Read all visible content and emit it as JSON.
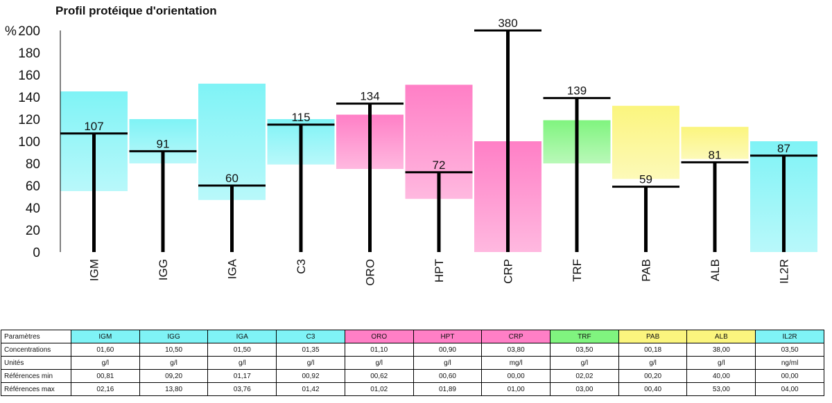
{
  "chart_data": {
    "type": "bar",
    "title": "Profil protéique d'orientation",
    "ylabel": "%",
    "ylim": [
      0,
      200
    ],
    "yticks": [
      0,
      20,
      40,
      60,
      80,
      100,
      120,
      140,
      160,
      180,
      200
    ],
    "grid": false,
    "categories": [
      "IGM",
      "IGG",
      "IGA",
      "C3",
      "ORO",
      "HPT",
      "CRP",
      "TRF",
      "PAB",
      "ALB",
      "IL2R"
    ],
    "values": [
      107,
      91,
      60,
      115,
      134,
      72,
      380,
      139,
      59,
      81,
      87
    ],
    "value_labels": [
      "107",
      "91",
      "60",
      "115",
      "134",
      "72",
      "380",
      "139",
      "59",
      "81",
      "87"
    ],
    "reference_ranges": [
      [
        55,
        145
      ],
      [
        80,
        120
      ],
      [
        47,
        152
      ],
      [
        79,
        120
      ],
      [
        75,
        124
      ],
      [
        48,
        151
      ],
      [
        0,
        100
      ],
      [
        80,
        119
      ],
      [
        66,
        132
      ],
      [
        84,
        113
      ],
      [
        0,
        100
      ]
    ],
    "value_clip_max": 200,
    "band_colors": [
      "cyan",
      "cyan",
      "cyan",
      "cyan",
      "pink",
      "pink",
      "pink",
      "green",
      "yellow",
      "yellow",
      "cyan"
    ],
    "colors": {
      "cyan": "#7ff3f6",
      "pink": "#ff7fc6",
      "green": "#80f47f",
      "yellow": "#fbf57e"
    }
  },
  "table": {
    "rows": [
      {
        "label": "Paramètres",
        "cells": [
          "IGM",
          "IGG",
          "IGA",
          "C3",
          "ORO",
          "HPT",
          "CRP",
          "TRF",
          "PAB",
          "ALB",
          "IL2R"
        ]
      },
      {
        "label": "Concentrations",
        "cells": [
          "01,60",
          "10,50",
          "01,50",
          "01,35",
          "01,10",
          "00,90",
          "03,80",
          "03,50",
          "00,18",
          "38,00",
          "03,50"
        ]
      },
      {
        "label": "Unités",
        "cells": [
          "g/l",
          "g/l",
          "g/l",
          "g/l",
          "g/l",
          "g/l",
          "mg/l",
          "g/l",
          "g/l",
          "g/l",
          "ng/ml"
        ]
      },
      {
        "label": "Références min",
        "cells": [
          "00,81",
          "09,20",
          "01,17",
          "00,92",
          "00,62",
          "00,60",
          "00,00",
          "02,02",
          "00,20",
          "40,00",
          "00,00"
        ]
      },
      {
        "label": "Références max",
        "cells": [
          "02,16",
          "13,80",
          "03,76",
          "01,42",
          "01,02",
          "01,89",
          "01,00",
          "03,00",
          "00,40",
          "53,00",
          "04,00"
        ]
      }
    ]
  }
}
